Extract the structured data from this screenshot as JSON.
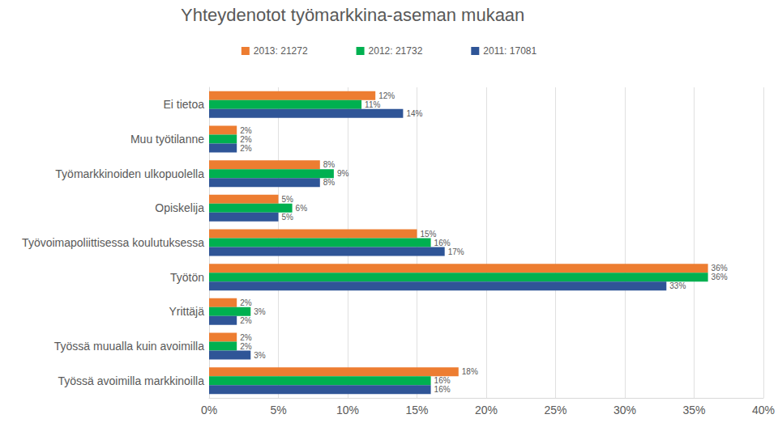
{
  "chart_data": {
    "type": "bar",
    "title": "Yhteydenotot työmarkkina-aseman mukaan",
    "orientation": "horizontal",
    "categories": [
      "Ei tietoa",
      "Muu työtilanne",
      "Työmarkkinoiden ulkopuolella",
      "Opiskelija",
      "Työvoimapoliittisessa koulutuksessa",
      "Työtön",
      "Yrittäjä",
      "Työssä muualla kuin avoimilla",
      "Työssä avoimilla markkinoilla"
    ],
    "series": [
      {
        "name": "2013: 21272",
        "color": "#ED7D31",
        "values": [
          12,
          2,
          8,
          5,
          15,
          36,
          2,
          2,
          18
        ],
        "value_labels": [
          "12%",
          "2%",
          "8%",
          "5%",
          "15%",
          "36%",
          "2%",
          "2%",
          "18%"
        ]
      },
      {
        "name": "2012: 21732",
        "color": "#00B050",
        "values": [
          11,
          2,
          9,
          6,
          16,
          36,
          3,
          2,
          16
        ],
        "value_labels": [
          "11%",
          "2%",
          "9%",
          "6%",
          "16%",
          "36%",
          "3%",
          "2%",
          "16%"
        ]
      },
      {
        "name": "2011: 17081",
        "color": "#2F5597",
        "values": [
          14,
          2,
          8,
          5,
          17,
          33,
          2,
          3,
          16
        ],
        "value_labels": [
          "14%",
          "2%",
          "8%",
          "5%",
          "17%",
          "33%",
          "2%",
          "3%",
          "16%"
        ]
      }
    ],
    "xlim": [
      0,
      40
    ],
    "xticks": [
      {
        "value": 0,
        "label": "0%"
      },
      {
        "value": 5,
        "label": "5%"
      },
      {
        "value": 10,
        "label": "10%"
      },
      {
        "value": 15,
        "label": "15%"
      },
      {
        "value": 20,
        "label": "20%"
      },
      {
        "value": 25,
        "label": "25%"
      },
      {
        "value": 30,
        "label": "30%"
      },
      {
        "value": 35,
        "label": "35%"
      },
      {
        "value": 40,
        "label": "40%"
      }
    ],
    "grid": true,
    "legend": "top",
    "data_labels": true
  }
}
